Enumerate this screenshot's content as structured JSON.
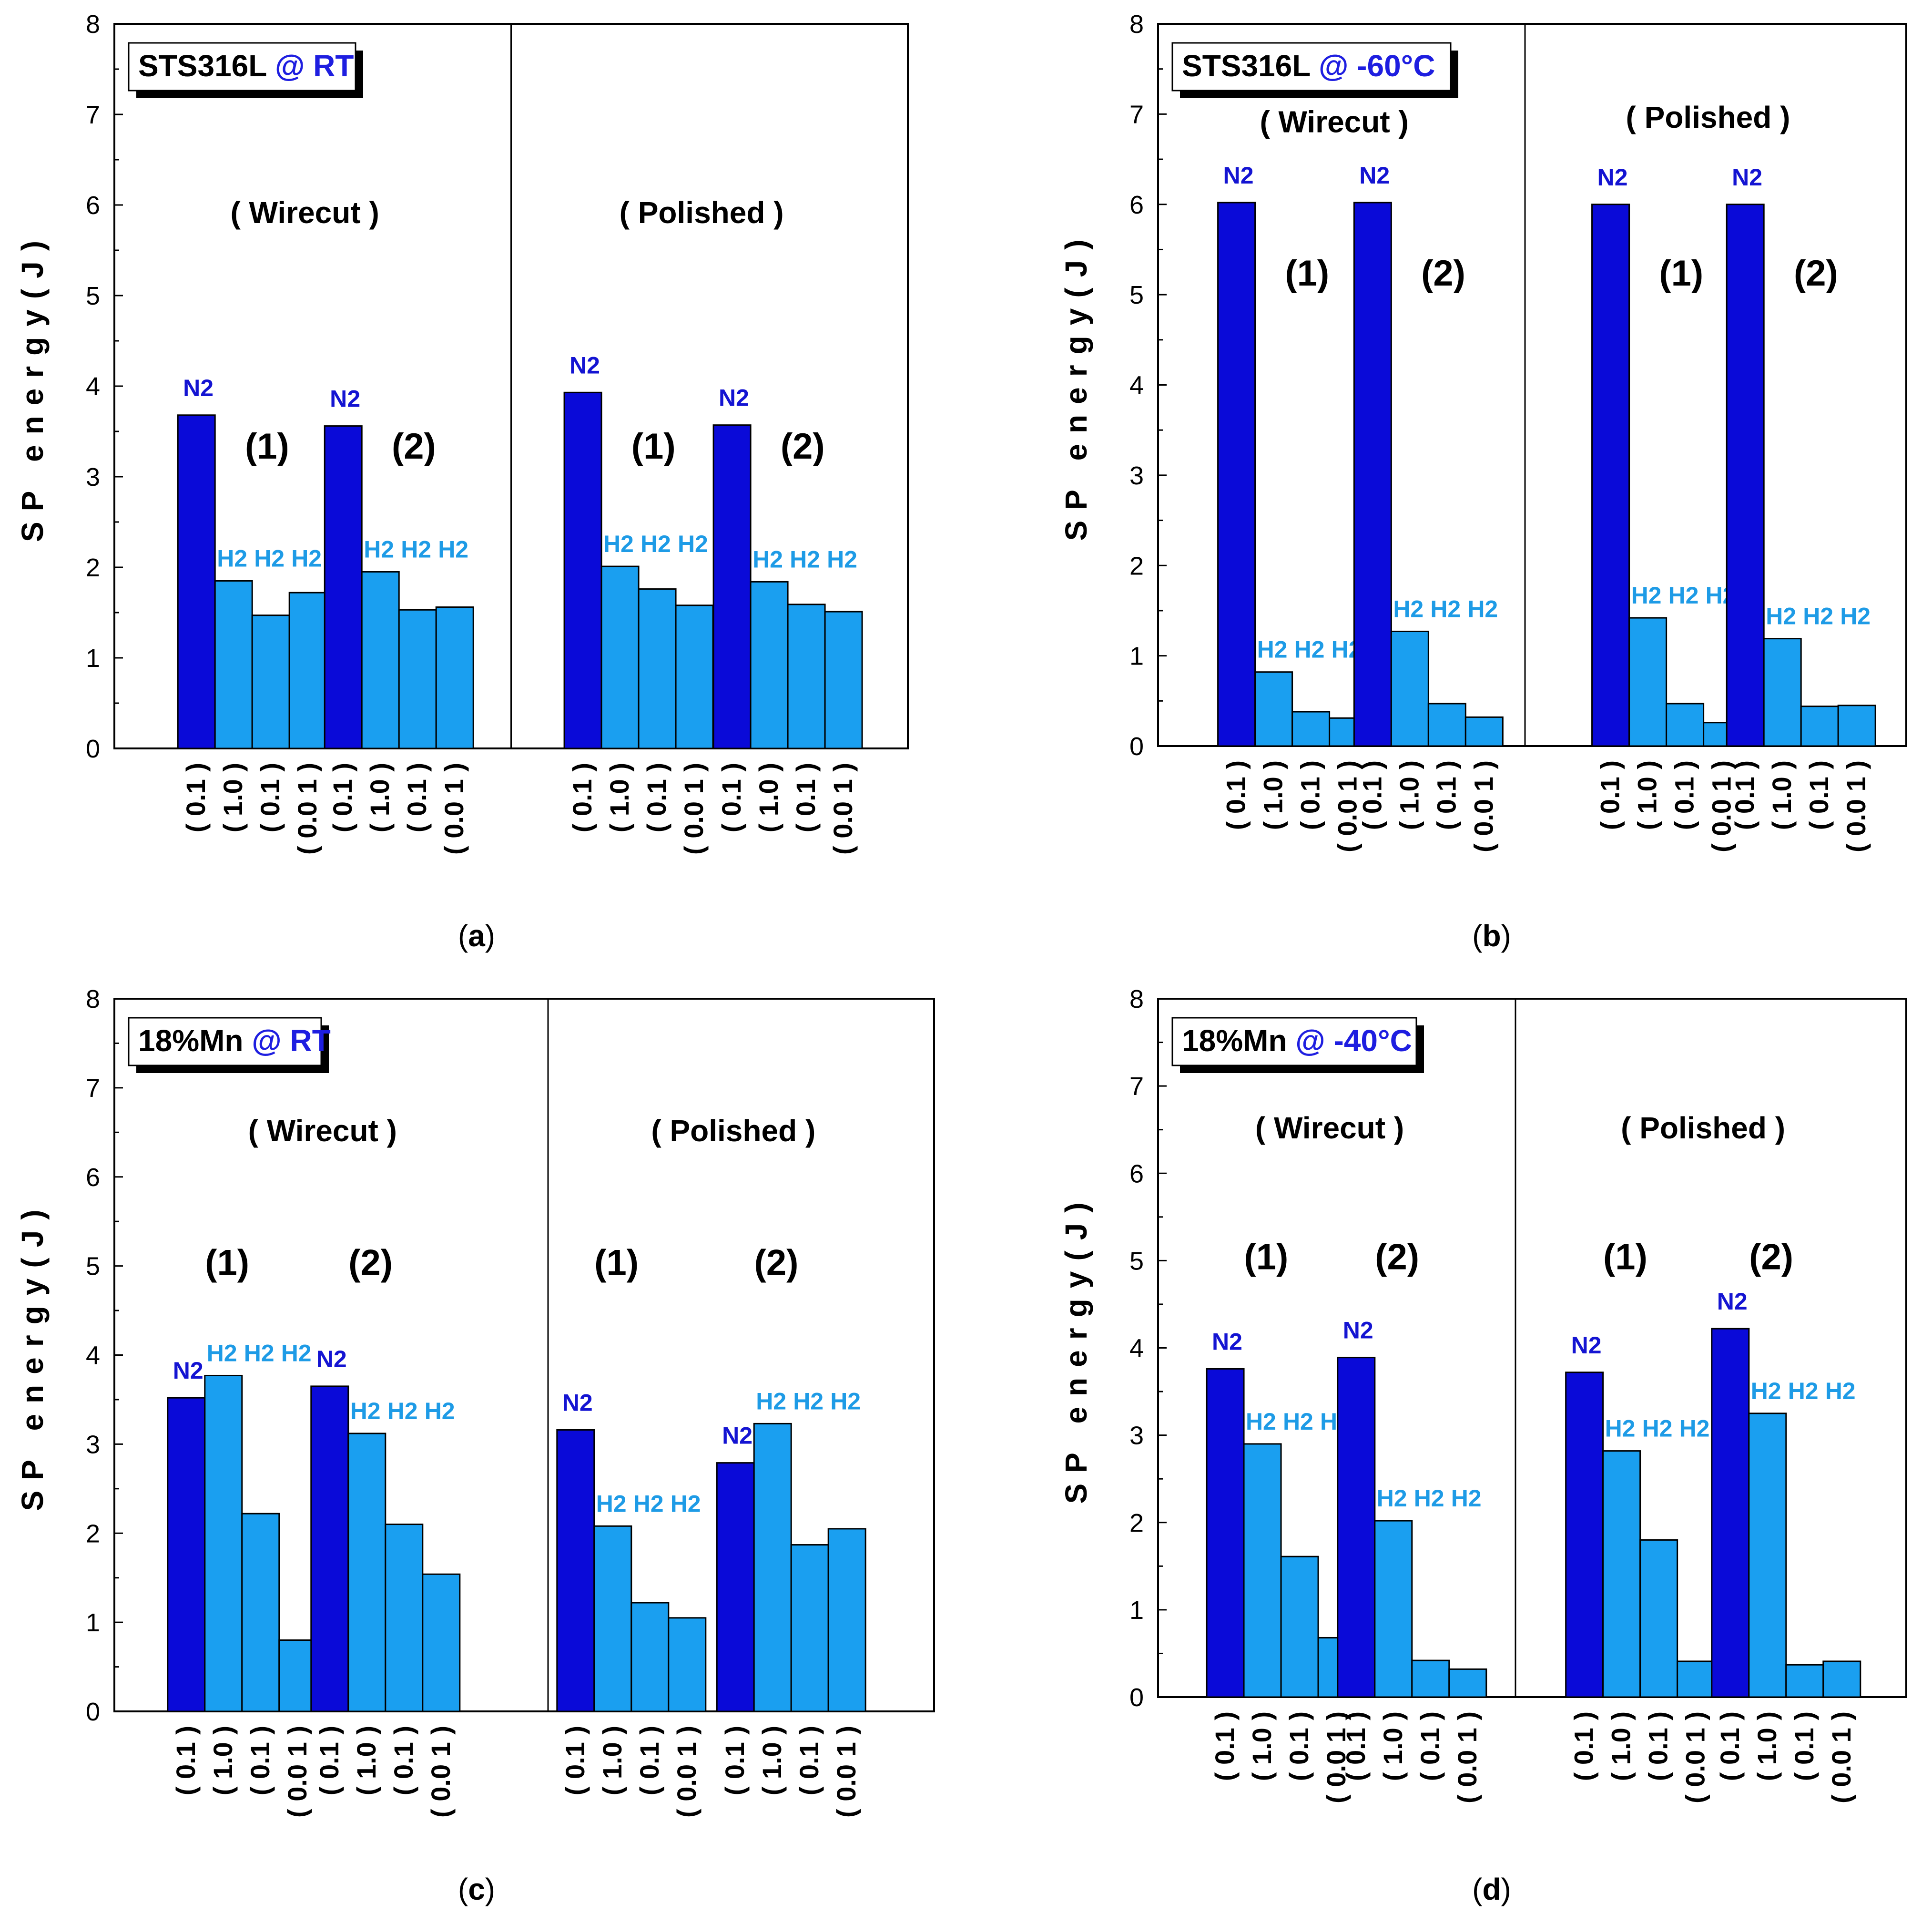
{
  "colors": {
    "n2_bar": "#0a0ad8",
    "h2_bar": "#1a9ff0",
    "n2_label": "#1414d2",
    "h2_label": "#1e9be6",
    "title_condition": "#1e1ee0"
  },
  "chart_data": [
    {
      "type": "bar",
      "panel": "a",
      "caption": "(a)",
      "title_material": "STS316L",
      "title_condition": "@ RT",
      "ylabel": "SP energy(J)",
      "ylim": [
        0,
        8
      ],
      "yticks": [
        "0",
        "1",
        "2",
        "3",
        "4",
        "5",
        "6",
        "7",
        "8"
      ],
      "categories": [
        "( 0.1 )",
        "( 1.0 )",
        "( 0.1 )",
        "( 0.0 1 )"
      ],
      "series_gases": [
        "N2",
        "H2",
        "H2",
        "H2"
      ],
      "sections": [
        {
          "name": "( Wirecut )",
          "groups": [
            {
              "label": "(1)",
              "values": [
                3.68,
                1.85,
                1.47,
                1.72
              ]
            },
            {
              "label": "(2)",
              "values": [
                3.56,
                1.95,
                1.53,
                1.56
              ]
            }
          ]
        },
        {
          "name": "( Polished )",
          "groups": [
            {
              "label": "(1)",
              "values": [
                3.93,
                2.01,
                1.76,
                1.58
              ]
            },
            {
              "label": "(2)",
              "values": [
                3.57,
                1.84,
                1.59,
                1.51
              ]
            }
          ]
        }
      ]
    },
    {
      "type": "bar",
      "panel": "b",
      "caption": "(b)",
      "title_material": "STS316L",
      "title_condition": "@ -60°C",
      "ylabel": "SP energy(J)",
      "ylim": [
        0,
        8
      ],
      "yticks": [
        "0",
        "1",
        "2",
        "3",
        "4",
        "5",
        "6",
        "7",
        "8"
      ],
      "categories": [
        "( 0.1 )",
        "( 1.0 )",
        "( 0.1 )",
        "( 0.0 1 )"
      ],
      "series_gases": [
        "N2",
        "H2",
        "H2",
        "H2"
      ],
      "sections": [
        {
          "name": "( Wirecut )",
          "groups": [
            {
              "label": "(1)",
              "values": [
                6.02,
                0.82,
                0.38,
                0.31
              ]
            },
            {
              "label": "(2)",
              "values": [
                6.02,
                1.27,
                0.47,
                0.32
              ]
            }
          ]
        },
        {
          "name": "( Polished )",
          "groups": [
            {
              "label": "(1)",
              "values": [
                6.0,
                1.42,
                0.47,
                0.26
              ]
            },
            {
              "label": "(2)",
              "values": [
                6.0,
                1.19,
                0.44,
                0.45
              ]
            }
          ]
        }
      ]
    },
    {
      "type": "bar",
      "panel": "c",
      "caption": "(c)",
      "title_material": "18%Mn",
      "title_condition": "@ RT",
      "ylabel": "SP energy(J)",
      "ylim": [
        0,
        8
      ],
      "yticks": [
        "0",
        "1",
        "2",
        "3",
        "4",
        "5",
        "6",
        "7",
        "8"
      ],
      "categories": [
        "( 0.1 )",
        "( 1.0 )",
        "( 0.1 )",
        "( 0.0 1 )"
      ],
      "series_gases": [
        "N2",
        "H2",
        "H2",
        "H2"
      ],
      "sections": [
        {
          "name": "( Wirecut )",
          "groups": [
            {
              "label": "(1)",
              "values": [
                3.52,
                3.77,
                2.22,
                0.8
              ]
            },
            {
              "label": "(2)",
              "values": [
                3.65,
                3.12,
                2.1,
                1.54
              ]
            }
          ]
        },
        {
          "name": "( Polished )",
          "groups": [
            {
              "label": "(1)",
              "values": [
                3.16,
                2.08,
                1.22,
                1.05
              ]
            },
            {
              "label": "(2)",
              "values": [
                2.79,
                3.23,
                1.87,
                2.05
              ]
            }
          ]
        }
      ]
    },
    {
      "type": "bar",
      "panel": "d",
      "caption": "(d)",
      "title_material": "18%Mn",
      "title_condition": "@ -40°C",
      "ylabel": "SP energy(J)",
      "ylim": [
        0,
        8
      ],
      "yticks": [
        "0",
        "1",
        "2",
        "3",
        "4",
        "5",
        "6",
        "7",
        "8"
      ],
      "categories": [
        "( 0.1 )",
        "( 1.0 )",
        "( 0.1 )",
        "( 0.0 1 )"
      ],
      "series_gases": [
        "N2",
        "H2",
        "H2",
        "H2"
      ],
      "sections": [
        {
          "name": "( Wirecut )",
          "groups": [
            {
              "label": "(1)",
              "values": [
                3.76,
                2.9,
                1.61,
                0.68
              ]
            },
            {
              "label": "(2)",
              "values": [
                3.89,
                2.02,
                0.42,
                0.32
              ]
            }
          ]
        },
        {
          "name": "( Polished )",
          "groups": [
            {
              "label": "(1)",
              "values": [
                3.72,
                2.82,
                1.8,
                0.41
              ]
            },
            {
              "label": "(2)",
              "values": [
                4.22,
                3.25,
                0.37,
                0.41
              ]
            }
          ]
        }
      ]
    }
  ]
}
